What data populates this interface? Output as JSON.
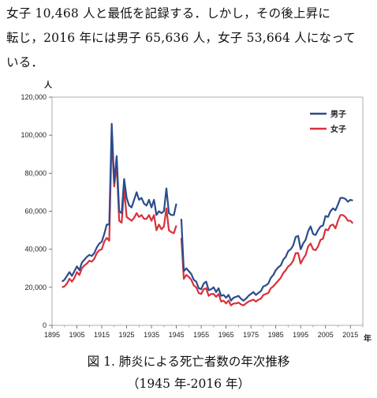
{
  "paragraph": {
    "line1": "女子 10,468 人と最低を記録する．しかし，その後上昇に",
    "line2": "転じ，2016 年には男子 65,636 人，女子 53,664 人になって",
    "line3": "いる．"
  },
  "caption": {
    "line1": "図 1. 肺炎による死亡者数の年次推移",
    "line2": "（1945 年-2016 年）"
  },
  "colors": {
    "male": "#2b4c8c",
    "female": "#d8313a"
  },
  "chart_data": {
    "type": "line",
    "y_unit_label": "人",
    "x_unit_label": "年",
    "xlim": [
      1895,
      2020
    ],
    "ylim": [
      0,
      120000
    ],
    "x_ticks": [
      1895,
      1905,
      1915,
      1925,
      1935,
      1945,
      1955,
      1965,
      1975,
      1985,
      1995,
      2005,
      2015
    ],
    "x_tick_labels": [
      "1895",
      "1905",
      "1915",
      "1925",
      "1935",
      "1945",
      "1955",
      "1965",
      "1975",
      "1985",
      "1995",
      "2005",
      "2015"
    ],
    "y_ticks": [
      0,
      20000,
      40000,
      60000,
      80000,
      100000,
      120000
    ],
    "y_tick_labels": [
      "0",
      "20,000",
      "40,000",
      "60,000",
      "80,000",
      "100,000",
      "120,000"
    ],
    "legend_position": "top-right",
    "series": [
      {
        "name": "男子",
        "color_key": "male",
        "segments": [
          [
            [
              1899,
              23000
            ],
            [
              1900,
              24000
            ],
            [
              1901,
              26000
            ],
            [
              1902,
              28000
            ],
            [
              1903,
              26000
            ],
            [
              1904,
              28500
            ],
            [
              1905,
              31000
            ],
            [
              1906,
              29000
            ],
            [
              1907,
              33000
            ],
            [
              1908,
              34500
            ],
            [
              1909,
              36000
            ],
            [
              1910,
              37000
            ],
            [
              1911,
              36500
            ],
            [
              1912,
              38000
            ],
            [
              1913,
              41000
            ],
            [
              1914,
              43000
            ],
            [
              1915,
              44000
            ],
            [
              1916,
              48000
            ],
            [
              1917,
              53000
            ],
            [
              1918,
              53000
            ],
            [
              1919,
              106000
            ],
            [
              1920,
              75000
            ],
            [
              1921,
              89000
            ],
            [
              1922,
              60000
            ],
            [
              1923,
              59000
            ],
            [
              1924,
              77000
            ],
            [
              1925,
              67000
            ],
            [
              1926,
              63000
            ],
            [
              1927,
              62000
            ],
            [
              1928,
              66000
            ],
            [
              1929,
              70000
            ],
            [
              1930,
              66000
            ],
            [
              1931,
              67000
            ],
            [
              1932,
              64000
            ],
            [
              1933,
              63000
            ],
            [
              1934,
              66000
            ],
            [
              1935,
              62000
            ],
            [
              1936,
              66000
            ],
            [
              1937,
              58000
            ],
            [
              1938,
              60000
            ],
            [
              1939,
              59000
            ],
            [
              1940,
              60000
            ],
            [
              1941,
              72000
            ],
            [
              1942,
              59000
            ],
            [
              1943,
              58000
            ],
            [
              1944,
              58000
            ],
            [
              1945,
              64000
            ]
          ],
          [
            [
              1947,
              56000
            ],
            [
              1948,
              28500
            ],
            [
              1949,
              30000
            ],
            [
              1950,
              28500
            ],
            [
              1951,
              27000
            ],
            [
              1952,
              24000
            ],
            [
              1953,
              23000
            ],
            [
              1954,
              19500
            ],
            [
              1955,
              19000
            ],
            [
              1956,
              22000
            ],
            [
              1957,
              23000
            ],
            [
              1958,
              18500
            ],
            [
              1959,
              19000
            ],
            [
              1960,
              20000
            ],
            [
              1961,
              17500
            ],
            [
              1962,
              19500
            ],
            [
              1963,
              15500
            ],
            [
              1964,
              16000
            ],
            [
              1965,
              14500
            ],
            [
              1966,
              16000
            ],
            [
              1967,
              13000
            ],
            [
              1968,
              14500
            ],
            [
              1969,
              15000
            ],
            [
              1970,
              15500
            ],
            [
              1971,
              14000
            ],
            [
              1972,
              13000
            ],
            [
              1973,
              14000
            ],
            [
              1974,
              15500
            ],
            [
              1975,
              16500
            ],
            [
              1976,
              17500
            ],
            [
              1977,
              16000
            ],
            [
              1978,
              17000
            ],
            [
              1979,
              18000
            ],
            [
              1980,
              20500
            ],
            [
              1981,
              21000
            ],
            [
              1982,
              22000
            ],
            [
              1983,
              25000
            ],
            [
              1984,
              26500
            ],
            [
              1985,
              29000
            ],
            [
              1986,
              30500
            ],
            [
              1987,
              31500
            ],
            [
              1988,
              34500
            ],
            [
              1989,
              36000
            ],
            [
              1990,
              39000
            ],
            [
              1991,
              40000
            ],
            [
              1992,
              42000
            ],
            [
              1993,
              46500
            ],
            [
              1994,
              47000
            ],
            [
              1995,
              40000
            ],
            [
              1996,
              43000
            ],
            [
              1997,
              45000
            ],
            [
              1998,
              49500
            ],
            [
              1999,
              52000
            ],
            [
              2000,
              48000
            ],
            [
              2001,
              47500
            ],
            [
              2002,
              50000
            ],
            [
              2003,
              52000
            ],
            [
              2004,
              52500
            ],
            [
              2005,
              57500
            ],
            [
              2006,
              57000
            ],
            [
              2007,
              60000
            ],
            [
              2008,
              61500
            ],
            [
              2009,
              60500
            ],
            [
              2010,
              63500
            ],
            [
              2011,
              67000
            ],
            [
              2012,
              67000
            ],
            [
              2013,
              66500
            ],
            [
              2014,
              65000
            ],
            [
              2015,
              66000
            ],
            [
              2016,
              65636
            ]
          ]
        ]
      },
      {
        "name": "女子",
        "color_key": "female",
        "segments": [
          [
            [
              1899,
              20000
            ],
            [
              1900,
              20500
            ],
            [
              1901,
              22000
            ],
            [
              1902,
              24500
            ],
            [
              1903,
              23000
            ],
            [
              1904,
              25000
            ],
            [
              1905,
              28000
            ],
            [
              1906,
              26500
            ],
            [
              1907,
              30000
            ],
            [
              1908,
              31500
            ],
            [
              1909,
              32500
            ],
            [
              1910,
              34000
            ],
            [
              1911,
              33500
            ],
            [
              1912,
              35000
            ],
            [
              1913,
              38000
            ],
            [
              1914,
              39500
            ],
            [
              1915,
              40000
            ],
            [
              1916,
              44000
            ],
            [
              1917,
              46000
            ],
            [
              1918,
              44500
            ],
            [
              1919,
              100000
            ],
            [
              1920,
              73000
            ],
            [
              1921,
              85000
            ],
            [
              1922,
              55000
            ],
            [
              1923,
              54000
            ],
            [
              1924,
              72000
            ],
            [
              1925,
              57000
            ],
            [
              1926,
              56000
            ],
            [
              1927,
              55000
            ],
            [
              1928,
              56500
            ],
            [
              1929,
              59000
            ],
            [
              1930,
              57000
            ],
            [
              1931,
              58000
            ],
            [
              1932,
              56000
            ],
            [
              1933,
              56000
            ],
            [
              1934,
              58000
            ],
            [
              1935,
              55000
            ],
            [
              1936,
              58000
            ],
            [
              1937,
              50000
            ],
            [
              1938,
              53000
            ],
            [
              1939,
              50500
            ],
            [
              1940,
              52000
            ],
            [
              1941,
              61500
            ],
            [
              1942,
              50000
            ],
            [
              1943,
              49000
            ],
            [
              1944,
              48500
            ],
            [
              1945,
              52500
            ]
          ],
          [
            [
              1947,
              46000
            ],
            [
              1948,
              24500
            ],
            [
              1949,
              26500
            ],
            [
              1950,
              25500
            ],
            [
              1951,
              24000
            ],
            [
              1952,
              21000
            ],
            [
              1953,
              20000
            ],
            [
              1954,
              17000
            ],
            [
              1955,
              16500
            ],
            [
              1956,
              19000
            ],
            [
              1957,
              19500
            ],
            [
              1958,
              15500
            ],
            [
              1959,
              16500
            ],
            [
              1960,
              16500
            ],
            [
              1961,
              15000
            ],
            [
              1962,
              16500
            ],
            [
              1963,
              12500
            ],
            [
              1964,
              13000
            ],
            [
              1965,
              11500
            ],
            [
              1966,
              13000
            ],
            [
              1967,
              10500
            ],
            [
              1968,
              11500
            ],
            [
              1969,
              11500
            ],
            [
              1970,
              12000
            ],
            [
              1971,
              11000
            ],
            [
              1972,
              10468
            ],
            [
              1973,
              11500
            ],
            [
              1974,
              12500
            ],
            [
              1975,
              13000
            ],
            [
              1976,
              13500
            ],
            [
              1977,
              12500
            ],
            [
              1978,
              13500
            ],
            [
              1979,
              14000
            ],
            [
              1980,
              16000
            ],
            [
              1981,
              16500
            ],
            [
              1982,
              17000
            ],
            [
              1983,
              19500
            ],
            [
              1984,
              20500
            ],
            [
              1985,
              22000
            ],
            [
              1986,
              23500
            ],
            [
              1987,
              25000
            ],
            [
              1988,
              27500
            ],
            [
              1989,
              29000
            ],
            [
              1990,
              31000
            ],
            [
              1991,
              32000
            ],
            [
              1992,
              34000
            ],
            [
              1993,
              38000
            ],
            [
              1994,
              38000
            ],
            [
              1995,
              32500
            ],
            [
              1996,
              35000
            ],
            [
              1997,
              37000
            ],
            [
              1998,
              41500
            ],
            [
              1999,
              43000
            ],
            [
              2000,
              40000
            ],
            [
              2001,
              39500
            ],
            [
              2002,
              41500
            ],
            [
              2003,
              45000
            ],
            [
              2004,
              45500
            ],
            [
              2005,
              50500
            ],
            [
              2006,
              50000
            ],
            [
              2007,
              52500
            ],
            [
              2008,
              53000
            ],
            [
              2009,
              51000
            ],
            [
              2010,
              55000
            ],
            [
              2011,
              58000
            ],
            [
              2012,
              58000
            ],
            [
              2013,
              57000
            ],
            [
              2014,
              55000
            ],
            [
              2015,
              55000
            ],
            [
              2016,
              53664
            ]
          ]
        ]
      }
    ]
  }
}
